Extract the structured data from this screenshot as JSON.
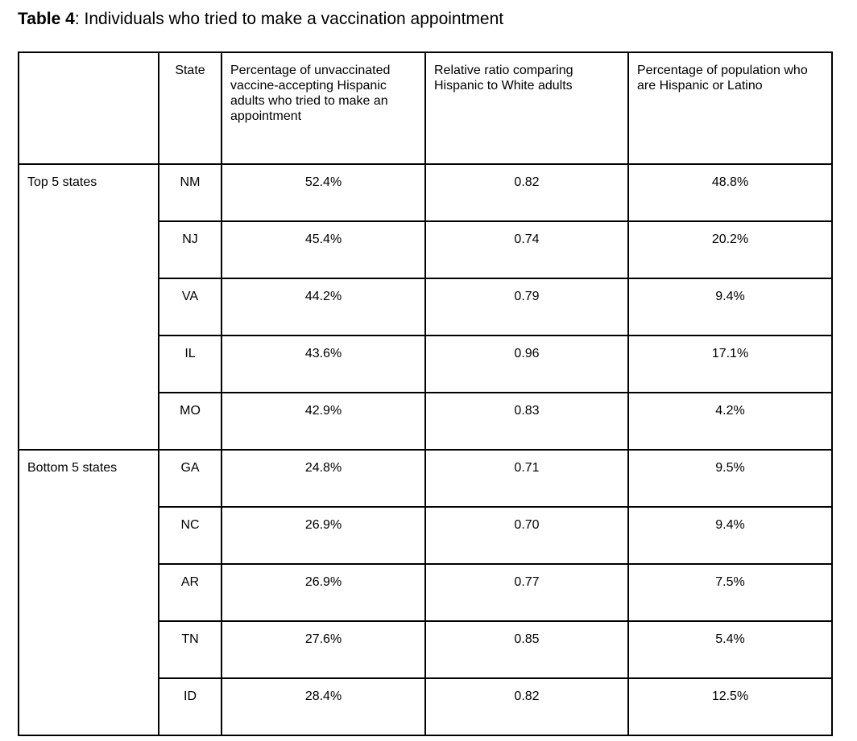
{
  "title": {
    "label": "Table 4",
    "text": ": Individuals who tried to make a vaccination appointment"
  },
  "table": {
    "headers": [
      "",
      "State",
      "Percentage of unvaccinated vaccine-accepting Hispanic adults who tried to make an appointment",
      "Relative ratio comparing Hispanic to White adults",
      "Percentage of population who are Hispanic or Latino"
    ],
    "groups": [
      {
        "label": "Top 5 states",
        "rows": [
          [
            "NM",
            "52.4%",
            "0.82",
            "48.8%"
          ],
          [
            "NJ",
            "45.4%",
            "0.74",
            "20.2%"
          ],
          [
            "VA",
            "44.2%",
            "0.79",
            "9.4%"
          ],
          [
            "IL",
            "43.6%",
            "0.96",
            "17.1%"
          ],
          [
            "MO",
            "42.9%",
            "0.83",
            "4.2%"
          ]
        ]
      },
      {
        "label": "Bottom 5 states",
        "rows": [
          [
            "GA",
            "24.8%",
            "0.71",
            "9.5%"
          ],
          [
            "NC",
            "26.9%",
            "0.70",
            "9.4%"
          ],
          [
            "AR",
            "26.9%",
            "0.77",
            "7.5%"
          ],
          [
            "TN",
            "27.6%",
            "0.85",
            "5.4%"
          ],
          [
            "ID",
            "28.4%",
            "0.82",
            "12.5%"
          ]
        ]
      }
    ]
  }
}
